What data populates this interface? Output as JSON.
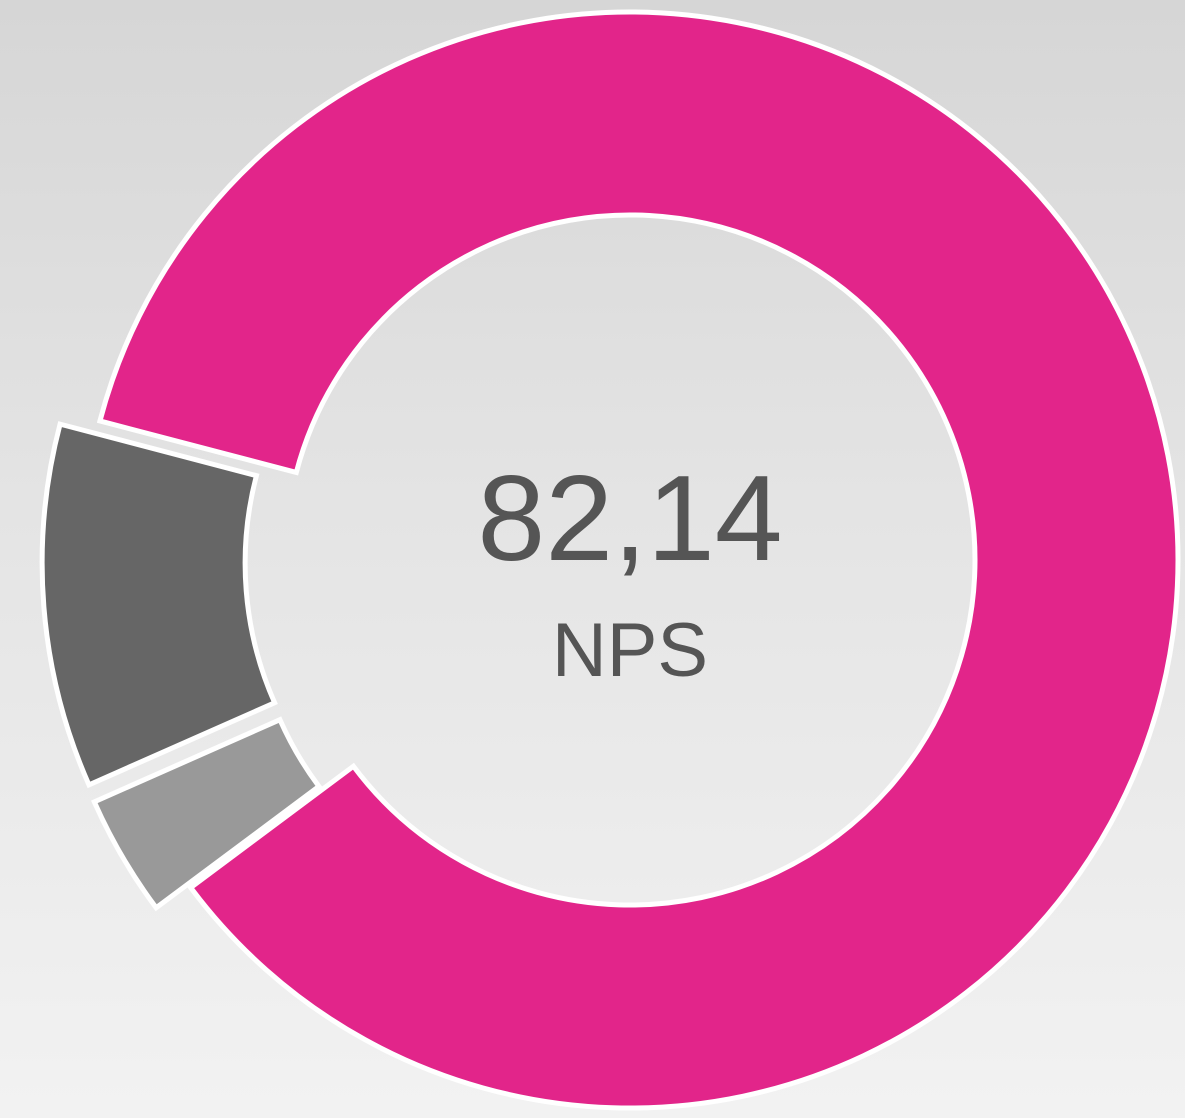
{
  "chart_data": {
    "type": "donut",
    "center_label": "82,14",
    "center_sublabel": "NPS",
    "values": [
      85.71,
      3.57,
      10.71
    ],
    "colors": [
      "#e2258a",
      "#999999",
      "#666666"
    ],
    "explode": [
      false,
      true,
      true
    ]
  }
}
